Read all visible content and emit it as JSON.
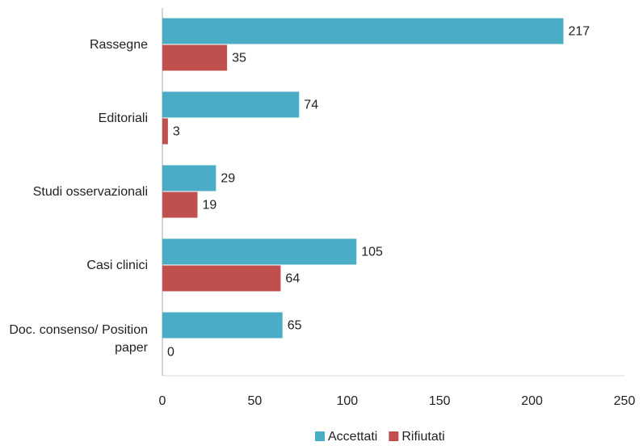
{
  "chart_data": {
    "type": "bar",
    "orientation": "horizontal",
    "categories": [
      "Rassegne",
      "Editoriali",
      "Studi osservazionali",
      "Casi clinici",
      "Doc. consenso/ Position paper"
    ],
    "series": [
      {
        "name": "Accettati",
        "color": "#4bacc6",
        "values": [
          217,
          74,
          29,
          105,
          65
        ]
      },
      {
        "name": "Rifiutati",
        "color": "#c0504d",
        "values": [
          35,
          3,
          19,
          64,
          0
        ]
      }
    ],
    "xlim": [
      0,
      250
    ],
    "xticks": [
      0,
      50,
      100,
      150,
      200,
      250
    ],
    "grid": false,
    "legend": "bottom"
  }
}
